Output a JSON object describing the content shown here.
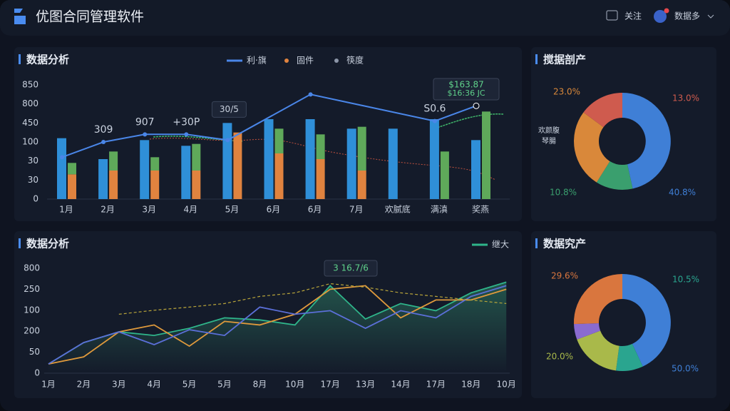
{
  "header": {
    "title": "优图合同管理软件",
    "actions": [
      "关注",
      "数据多"
    ]
  },
  "panels": [
    {
      "title": "数据分析",
      "type": "bar-line",
      "legend": [
        "利·旗",
        "固件",
        "筷度"
      ],
      "categories": [
        "1月",
        "2月",
        "3月",
        "4月",
        "5月",
        "6月",
        "6月",
        "7月",
        "欢腻底",
        "满滇",
        "奖燕"
      ],
      "y_labels": [
        "0",
        "30",
        "30",
        "100",
        "450",
        "800",
        "850"
      ],
      "ylim": [
        0,
        6
      ],
      "bars": [
        {
          "color": "#2f8fd8",
          "values": [
            3.2,
            2.1,
            3.1,
            2.8,
            4.0,
            4.2,
            4.2,
            3.7,
            3.7,
            4.2,
            3.1
          ]
        },
        {
          "color": "#e0833f",
          "values": [
            1.3,
            1.5,
            1.5,
            1.5,
            3.5,
            2.4,
            2.1,
            1.5,
            null,
            0,
            0
          ]
        },
        {
          "color": "#5fa95a",
          "values": [
            0.6,
            1.0,
            0.7,
            1.4,
            0,
            1.3,
            1.3,
            2.3,
            null,
            2.5,
            4.6
          ]
        }
      ],
      "line": {
        "color": "#4a86e8",
        "x": [
          0,
          1,
          2,
          3,
          4,
          6,
          9,
          10
        ],
        "values": [
          2.2,
          3.0,
          3.4,
          3.4,
          3.1,
          5.5,
          4.1,
          4.9
        ],
        "labels": [
          null,
          "309",
          "907",
          "+30P",
          "30/5",
          null,
          "S0.6",
          null
        ]
      },
      "annotation": [
        "$163.87",
        "$16:36 JC"
      ]
    },
    {
      "title": "搅据剖产",
      "type": "donut",
      "values": [
        40.8,
        10.8,
        23.0,
        13.0
      ],
      "value_labels": [
        "40.8%",
        "10.8%",
        "23.0%",
        "13.0%"
      ],
      "colors": [
        "#3f7fd6",
        "#3a9f6e",
        "#d9883a",
        "#cf5b4e"
      ],
      "side_label": [
        "欢颜腹",
        "琴腸"
      ]
    },
    {
      "title": "数据分析",
      "type": "line",
      "legend": [
        "继大"
      ],
      "categories": [
        "1月",
        "2月",
        "3月",
        "4月",
        "5月",
        "5月",
        "8月",
        "10月",
        "17月",
        "13月",
        "14月",
        "17月",
        "18月",
        "10月"
      ],
      "y_labels": [
        "0",
        "50",
        "200",
        "100",
        "250",
        "800"
      ],
      "ylim": [
        0,
        5
      ],
      "series": [
        {
          "color": "#2fb58a",
          "values": [
            0.44,
            1.46,
            1.97,
            1.8,
            2.14,
            2.64,
            2.54,
            2.3,
            4.17,
            2.58,
            3.32,
            2.98,
            3.83,
            4.34
          ]
        },
        {
          "color": "#e09a3c",
          "values": [
            0.44,
            0.78,
            1.97,
            2.3,
            1.29,
            2.47,
            2.3,
            2.81,
            4.0,
            4.17,
            2.64,
            3.49,
            3.49,
            4.0
          ]
        },
        {
          "color": "#5b6fd8",
          "values": [
            0.44,
            1.46,
            1.97,
            1.36,
            2.07,
            1.8,
            3.15,
            2.81,
            2.98,
            2.14,
            2.98,
            2.64,
            3.66,
            4.17
          ]
        },
        {
          "color": "#b9a53a",
          "dashed": true,
          "values": [
            null,
            null,
            2.81,
            3.0,
            3.15,
            3.32,
            3.66,
            3.83,
            4.27,
            4.1,
            3.83,
            3.66,
            3.49,
            3.32
          ]
        }
      ],
      "annotation": "3 16.7/6"
    },
    {
      "title": "数据究产",
      "type": "donut",
      "values": [
        50.0,
        10.5,
        20.0,
        6,
        29.6
      ],
      "value_labels": [
        "50.0%",
        "10.5%",
        "20.0%",
        null,
        "29.6%"
      ],
      "colors": [
        "#3f7fd6",
        "#2aa58f",
        "#a9b94a",
        "#8a6bd0",
        "#d9763e"
      ]
    }
  ]
}
